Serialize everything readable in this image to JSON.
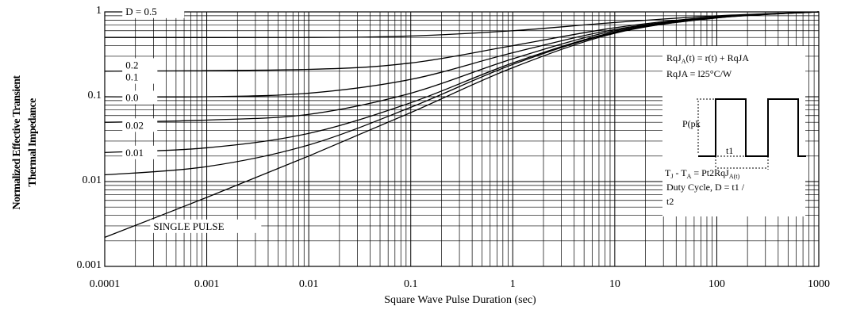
{
  "chart_data": {
    "type": "line",
    "ylabel": [
      "Normalized Effective Transient",
      "Thermal Impedance"
    ],
    "xlabel": "Square Wave Pulse Duration (sec)",
    "x_scale": "log",
    "y_scale": "log",
    "xlim": [
      0.0001,
      1000
    ],
    "ylim": [
      0.001,
      1
    ],
    "x_ticks": [
      "0.0001",
      "0.001",
      "0.01",
      "0.1",
      "1",
      "10",
      "100",
      "1000"
    ],
    "y_ticks": [
      "1",
      "0.1",
      "0.01",
      "0.001"
    ],
    "grid": true,
    "series": [
      {
        "name": "D = 0.5",
        "x": [
          0.0001,
          0.01,
          0.1,
          1,
          10,
          100,
          1000
        ],
        "y": [
          0.5,
          0.5,
          0.52,
          0.6,
          0.75,
          0.9,
          1.0
        ]
      },
      {
        "name": "0.2",
        "x": [
          0.0001,
          0.01,
          0.1,
          1,
          10,
          100,
          1000
        ],
        "y": [
          0.2,
          0.21,
          0.25,
          0.4,
          0.65,
          0.88,
          1.0
        ]
      },
      {
        "name": "0.1",
        "x": [
          0.0001,
          0.001,
          0.01,
          0.1,
          1,
          10,
          100,
          1000
        ],
        "y": [
          0.1,
          0.1,
          0.11,
          0.16,
          0.33,
          0.62,
          0.87,
          1.0
        ]
      },
      {
        "name": "0.0",
        "x": [
          0.0001,
          0.001,
          0.01,
          0.1,
          1,
          10,
          100,
          1000
        ],
        "y": [
          0.05,
          0.053,
          0.062,
          0.11,
          0.28,
          0.6,
          0.86,
          1.0
        ]
      },
      {
        "name": "0.02",
        "x": [
          0.0001,
          0.001,
          0.01,
          0.1,
          1,
          10,
          100,
          1000
        ],
        "y": [
          0.022,
          0.025,
          0.037,
          0.085,
          0.25,
          0.58,
          0.86,
          1.0
        ]
      },
      {
        "name": "0.01",
        "x": [
          0.0001,
          0.001,
          0.01,
          0.1,
          1,
          10,
          100,
          1000
        ],
        "y": [
          0.012,
          0.015,
          0.027,
          0.075,
          0.24,
          0.57,
          0.85,
          1.0
        ]
      },
      {
        "name": "SINGLE PULSE",
        "x": [
          0.0001,
          0.001,
          0.01,
          0.1,
          1,
          10,
          100,
          1000
        ],
        "y": [
          0.0022,
          0.0065,
          0.02,
          0.065,
          0.22,
          0.56,
          0.85,
          1.0
        ]
      }
    ],
    "annotations": {
      "eq1": [
        "RqJ",
        "A",
        "(t) = r(t) + RqJA"
      ],
      "eq2": "RqJA = l25°C/W",
      "ppk": "P(pk",
      "t1": "t1",
      "eq3": [
        "T",
        "J",
        " - T",
        "A",
        " = Pt2RqJ",
        "A(t)"
      ],
      "duty": [
        "Duty Cycle, D = t1 /",
        "t2"
      ]
    }
  }
}
